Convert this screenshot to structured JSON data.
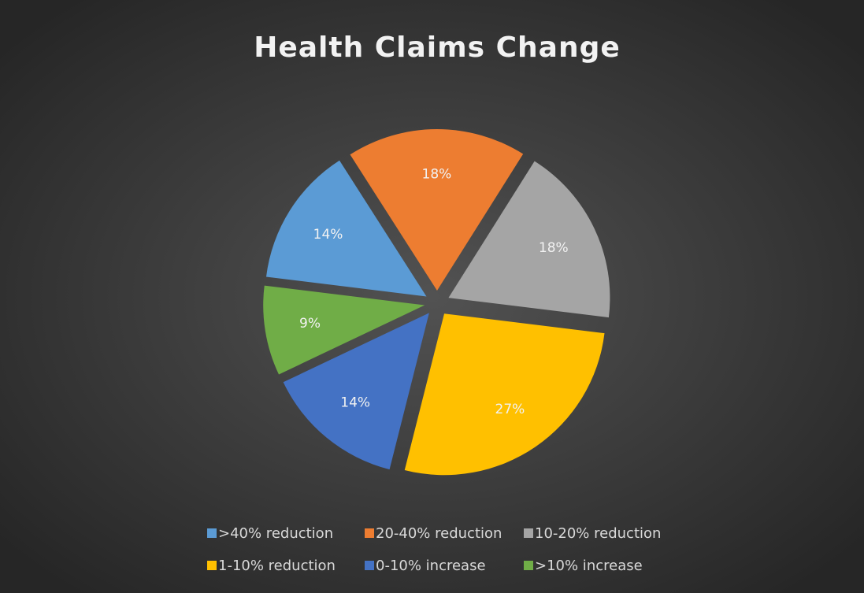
{
  "chart_data": {
    "type": "pie",
    "title": "Health Claims Change",
    "categories": [
      ">40% reduction",
      "20-40% reduction",
      "10-20% reduction",
      "1-10% reduction",
      "0-10% increase",
      ">10% increase"
    ],
    "values": [
      14,
      18,
      18,
      27,
      14,
      9
    ],
    "value_labels": [
      "14%",
      "18%",
      "18%",
      "27%",
      "14%",
      "9%"
    ],
    "colors": [
      "#5b9bd5",
      "#ed7d31",
      "#a5a5a5",
      "#ffc000",
      "#4472c4",
      "#70ad47"
    ],
    "start_angle": -83,
    "legend": "bottom"
  }
}
